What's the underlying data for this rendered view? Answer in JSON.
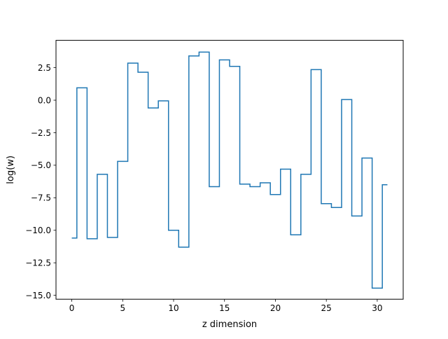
{
  "chart_data": {
    "type": "line",
    "drawstyle": "steps-mid",
    "xlabel": "z dimension",
    "ylabel": "log(w)",
    "xlim": [
      -1.55,
      32.55
    ],
    "ylim": [
      -15.3,
      4.6
    ],
    "xticks": [
      0,
      5,
      10,
      15,
      20,
      25,
      30
    ],
    "yticks": [
      2.5,
      0.0,
      -2.5,
      -5.0,
      -7.5,
      -10.0,
      -12.5,
      -15.0
    ],
    "ytick_labels": [
      "2.5",
      "0.0",
      "−2.5",
      "−5.0",
      "−7.5",
      "−10.0",
      "−12.5",
      "−15.0"
    ],
    "grid": false,
    "series": [
      {
        "color": "#1f77b4",
        "x": [
          0,
          1,
          2,
          3,
          4,
          5,
          6,
          7,
          8,
          9,
          10,
          11,
          12,
          13,
          14,
          15,
          16,
          17,
          18,
          19,
          20,
          21,
          22,
          23,
          24,
          25,
          26,
          27,
          28,
          29,
          30,
          31
        ],
        "values": [
          -10.6,
          0.95,
          -10.65,
          -5.7,
          -10.55,
          -4.7,
          2.85,
          2.15,
          -0.6,
          -0.05,
          -10.0,
          -11.3,
          3.4,
          3.7,
          -6.65,
          3.1,
          2.6,
          -6.45,
          -6.65,
          -6.35,
          -7.25,
          -5.3,
          -10.35,
          -5.7,
          2.35,
          -7.95,
          -8.25,
          0.05,
          -8.9,
          -4.45,
          -14.45,
          -6.5
        ]
      }
    ]
  }
}
